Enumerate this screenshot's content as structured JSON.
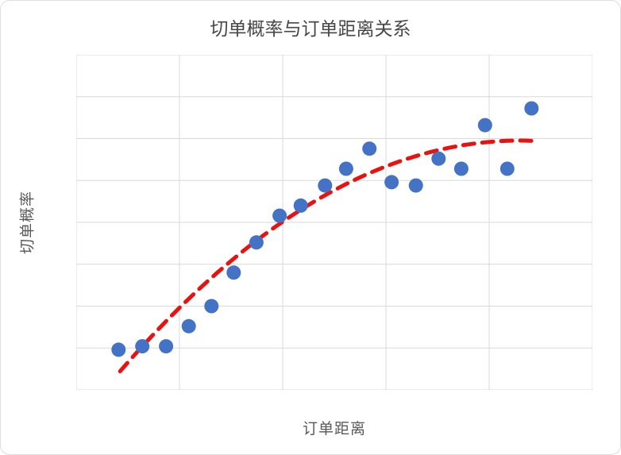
{
  "page": {
    "background": "#ffffff",
    "border_color": "#dedede"
  },
  "chart_data": {
    "type": "scatter",
    "title": "切单概率与订单距离关系",
    "xlabel": "订单距离",
    "ylabel": "切单概率",
    "xlim": [
      0,
      10
    ],
    "ylim": [
      0,
      1
    ],
    "grid": true,
    "grid_cols": 5,
    "grid_rows": 8,
    "legend": "none",
    "axis_tick_labels": "none",
    "point_color": "#4472c4",
    "trend_color": "#ea1111",
    "grid_color": "#d9d9d9",
    "text_color": "#595959",
    "point_radius": 9,
    "points": [
      [
        0.82,
        0.12
      ],
      [
        1.28,
        0.13
      ],
      [
        1.74,
        0.13
      ],
      [
        2.18,
        0.19
      ],
      [
        2.62,
        0.25
      ],
      [
        3.05,
        0.35
      ],
      [
        3.49,
        0.44
      ],
      [
        3.94,
        0.52
      ],
      [
        4.35,
        0.55
      ],
      [
        4.82,
        0.61
      ],
      [
        5.23,
        0.66
      ],
      [
        5.68,
        0.72
      ],
      [
        6.11,
        0.62
      ],
      [
        6.58,
        0.61
      ],
      [
        7.02,
        0.69
      ],
      [
        7.46,
        0.66
      ],
      [
        7.92,
        0.79
      ],
      [
        8.35,
        0.66
      ],
      [
        8.82,
        0.84
      ]
    ],
    "trend": {
      "style": "dashed",
      "fit": {
        "kind": "quadratic",
        "a": -0.104,
        "b": 0.1975,
        "c": -0.0115
      },
      "x_range": [
        0.85,
        8.85
      ]
    }
  }
}
